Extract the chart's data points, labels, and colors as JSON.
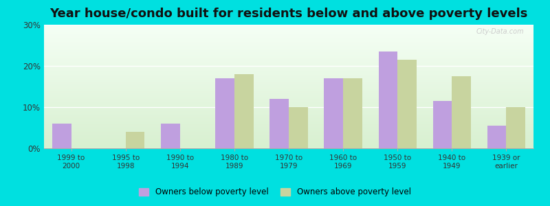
{
  "title": "Year house/condo built for residents below and above poverty levels",
  "categories": [
    "1999 to\n2000",
    "1995 to\n1998",
    "1990 to\n1994",
    "1980 to\n1989",
    "1970 to\n1979",
    "1960 to\n1969",
    "1950 to\n1959",
    "1940 to\n1949",
    "1939 or\nearlier"
  ],
  "below_poverty": [
    6.0,
    0.0,
    6.0,
    17.0,
    12.0,
    17.0,
    23.5,
    11.5,
    5.5
  ],
  "above_poverty": [
    0.0,
    4.0,
    0.0,
    18.0,
    10.0,
    17.0,
    21.5,
    17.5,
    10.0
  ],
  "below_color": "#bf9fdf",
  "above_color": "#c8d49f",
  "bg_top_color": "#f5fff5",
  "bg_bottom_color": "#d8f0d0",
  "outer_background": "#00e0e0",
  "ylim": [
    0,
    30
  ],
  "yticks": [
    0,
    10,
    20,
    30
  ],
  "legend_below": "Owners below poverty level",
  "legend_above": "Owners above poverty level",
  "title_fontsize": 13,
  "bar_width": 0.35,
  "watermark": "City-Data.com"
}
